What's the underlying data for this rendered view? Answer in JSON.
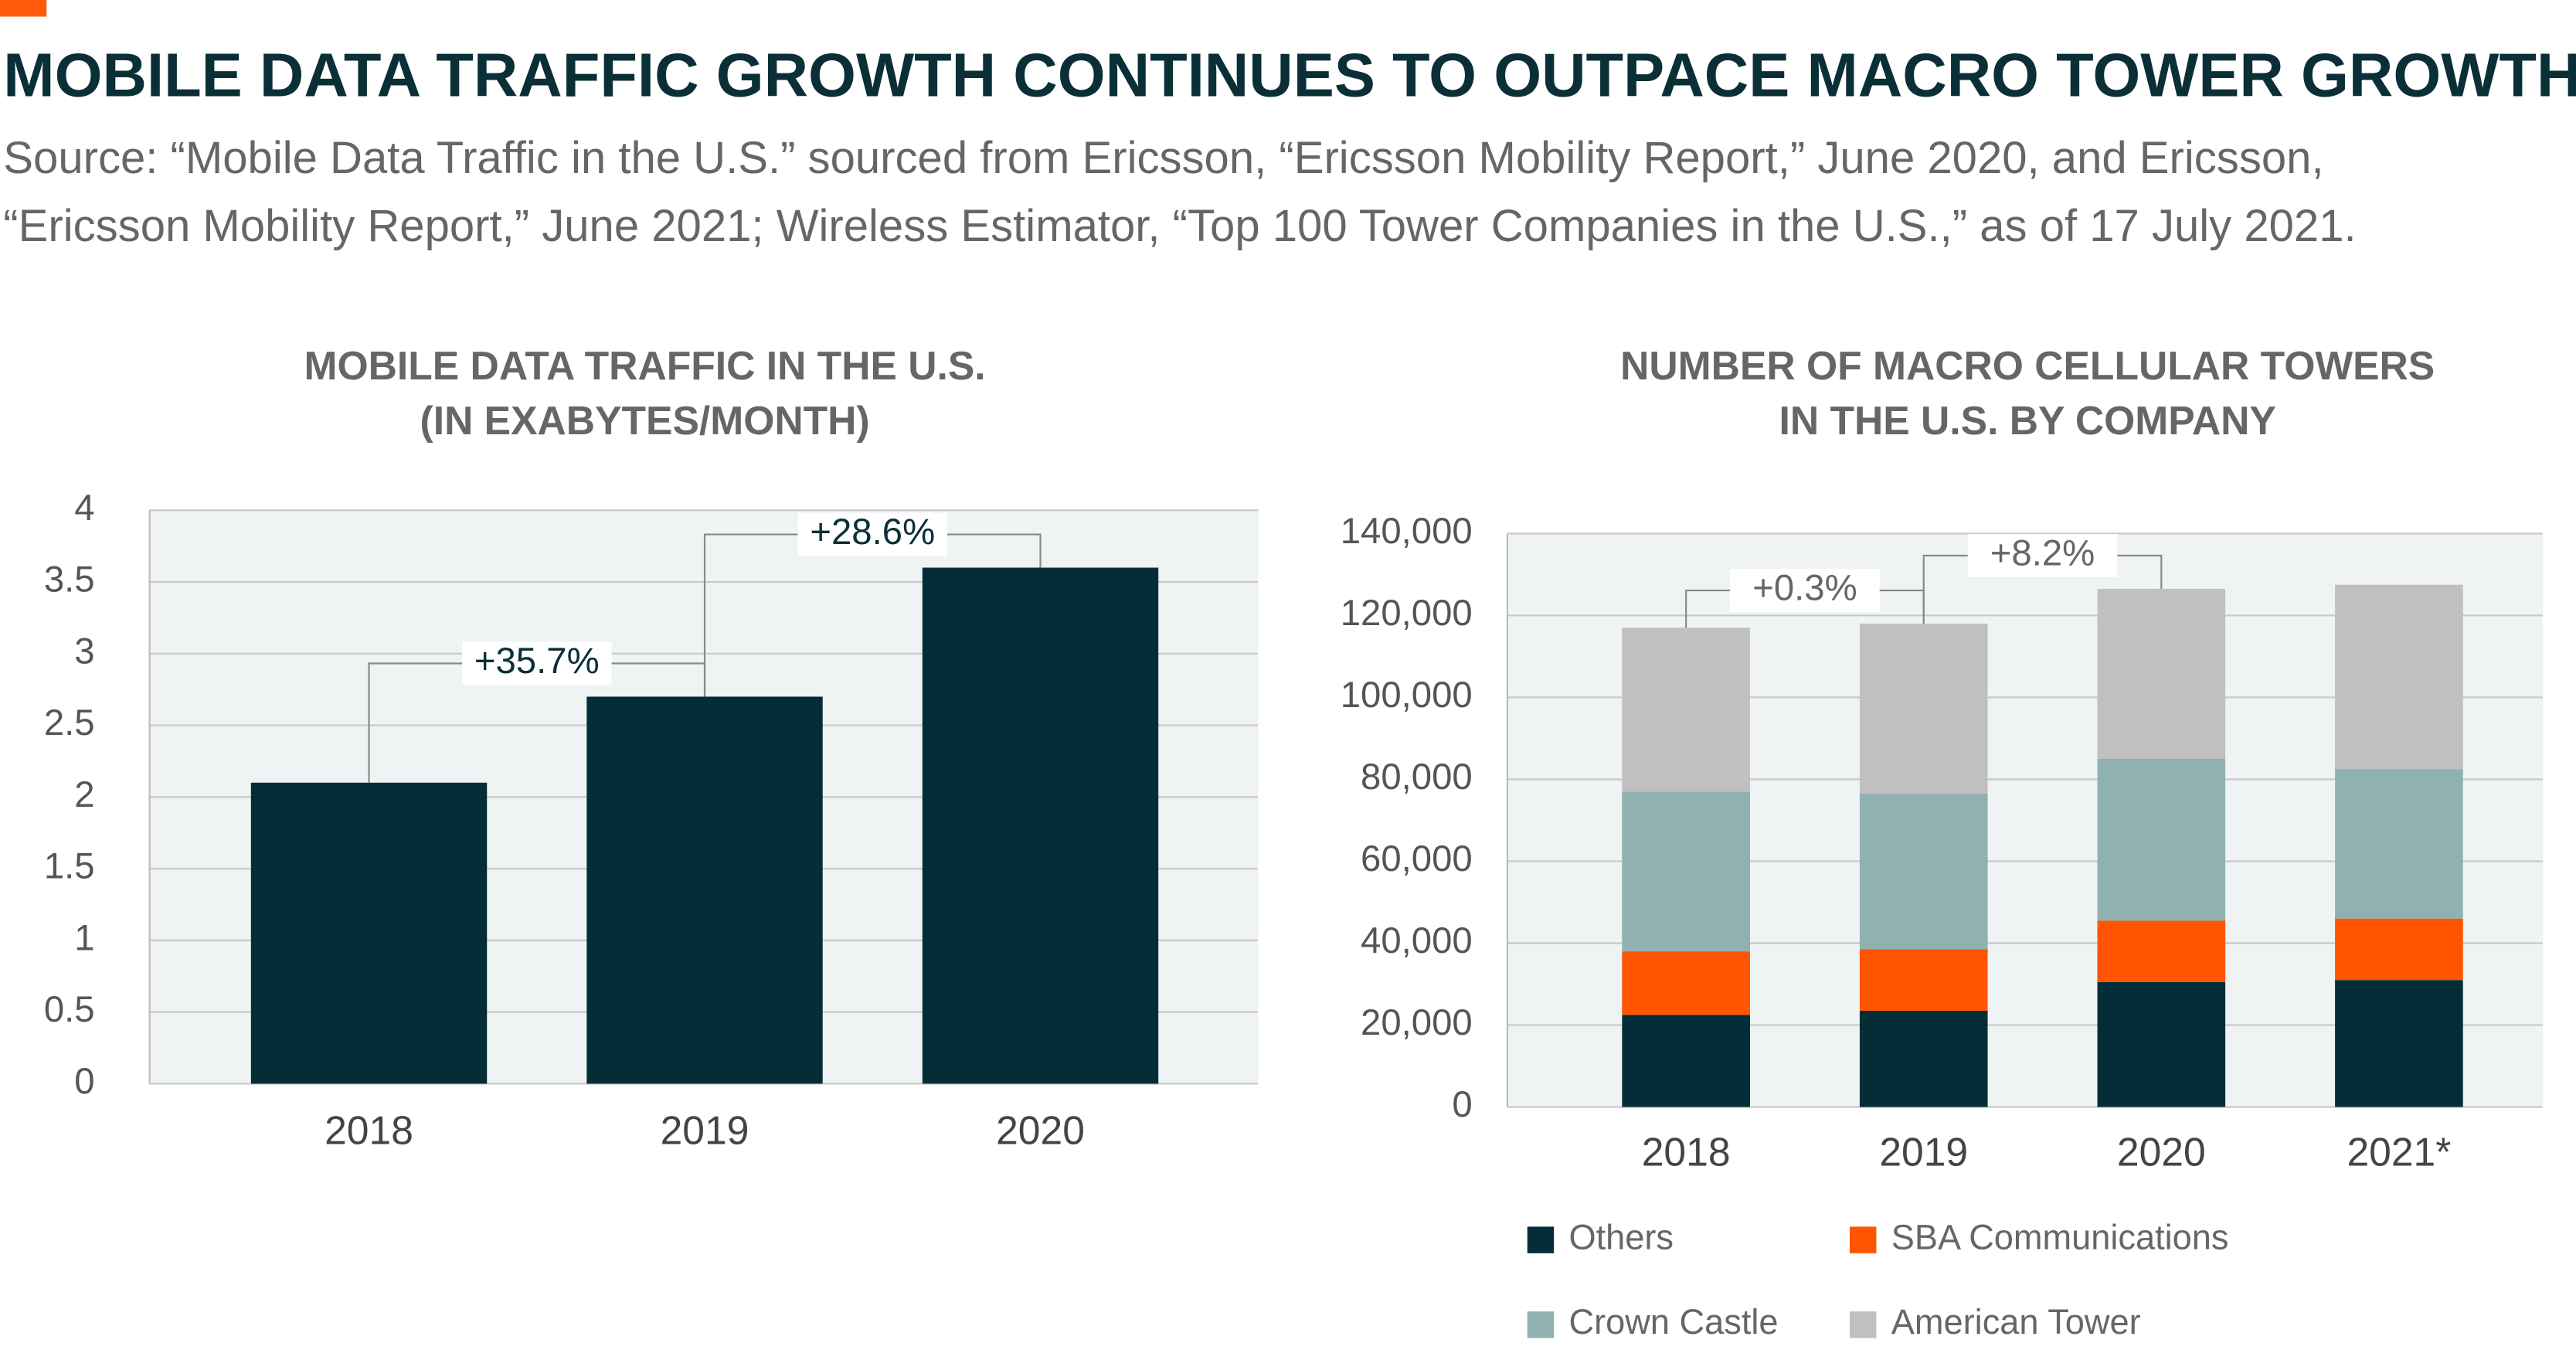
{
  "title": "MOBILE DATA TRAFFIC GROWTH CONTINUES TO OUTPACE MACRO TOWER GROWTH",
  "source": [
    "Source: “Mobile Data Traffic in the U.S.” sourced from Ericsson, “Ericsson Mobility Report,” June 2020, and Ericsson,",
    "“Ericsson Mobility Report,” June 2021; Wireless Estimator, “Top 100 Tower Companies in the U.S.,” as of 17 July 2021."
  ],
  "chart_data": [
    {
      "type": "bar",
      "title": [
        "MOBILE DATA TRAFFIC IN THE U.S.",
        "(IN EXABYTES/MONTH)"
      ],
      "categories": [
        "2018",
        "2019",
        "2020"
      ],
      "values": [
        2.1,
        2.7,
        3.6
      ],
      "color": "#032e38",
      "ylim": [
        0,
        4
      ],
      "yticks": [
        0,
        0.5,
        1,
        1.5,
        2,
        2.5,
        3,
        3.5,
        4
      ],
      "grid": true,
      "annotations": [
        "+35.7%",
        "+28.6%"
      ]
    },
    {
      "type": "stacked_bar",
      "title": [
        "NUMBER OF MACRO CELLULAR TOWERS",
        "IN THE U.S. BY COMPANY"
      ],
      "categories": [
        "2018",
        "2019",
        "2020",
        "2021*"
      ],
      "series": [
        {
          "name": "Others",
          "color": "#032e38",
          "values": [
            22500,
            23500,
            30500,
            31000
          ]
        },
        {
          "name": "SBA Communications",
          "color": "#ff5400",
          "values": [
            15500,
            15000,
            15000,
            15000
          ]
        },
        {
          "name": "Crown Castle",
          "color": "#8fb1b0",
          "values": [
            39000,
            38000,
            39500,
            36500
          ]
        },
        {
          "name": "American Tower",
          "color": "#c0c0c0",
          "values": [
            40000,
            41500,
            41500,
            45000
          ]
        }
      ],
      "ylim": [
        0,
        140000
      ],
      "yticks": [
        0,
        {
          "value": 20000,
          "label": "20,000"
        },
        {
          "value": 40000,
          "label": "40,000"
        },
        {
          "value": 60000,
          "label": "60,000"
        },
        {
          "value": 80000,
          "label": "80,000"
        },
        {
          "value": 100000,
          "label": "100,000"
        },
        {
          "value": 120000,
          "label": "120,000"
        },
        {
          "value": 140000,
          "label": "140,000"
        }
      ],
      "grid": true,
      "legend": "bottom",
      "annotations": [
        "+0.3%",
        "+8.2%"
      ]
    }
  ]
}
